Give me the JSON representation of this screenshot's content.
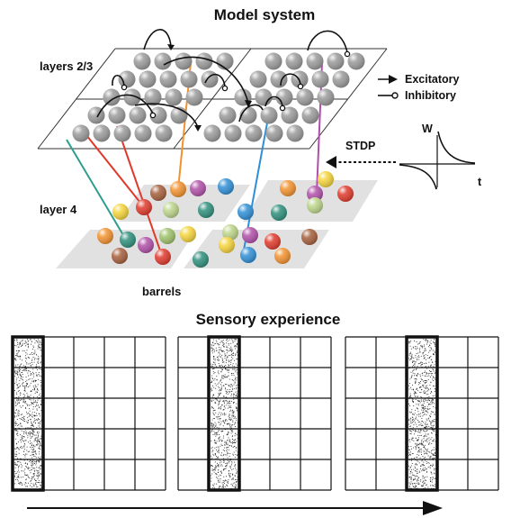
{
  "top": {
    "title": "Model system",
    "labels": {
      "layers23": "layers 2/3",
      "layer4": "layer 4",
      "barrels": "barrels",
      "stdp": "STDP",
      "w_axis": "W",
      "t_axis": "t"
    },
    "legend": [
      {
        "label": "Excitatory",
        "marker": "filled-arrow"
      },
      {
        "label": "Inhibitory",
        "marker": "open-circle"
      }
    ],
    "colors": {
      "neuron_gray": "#9a9a9a",
      "barrel_plane": "#e1e1e1",
      "projection_teal": "#2e9e8e",
      "projection_red": "#e0392b",
      "projection_orange": "#f2922f",
      "projection_blue": "#2f8fd6",
      "projection_magenta": "#b04fa8"
    }
  },
  "bottom": {
    "title": "Sensory experience",
    "panels": [
      {
        "active_column": 1
      },
      {
        "active_column": 2
      },
      {
        "active_column": 3
      }
    ],
    "grid_columns": 5,
    "grid_rows": 5
  }
}
